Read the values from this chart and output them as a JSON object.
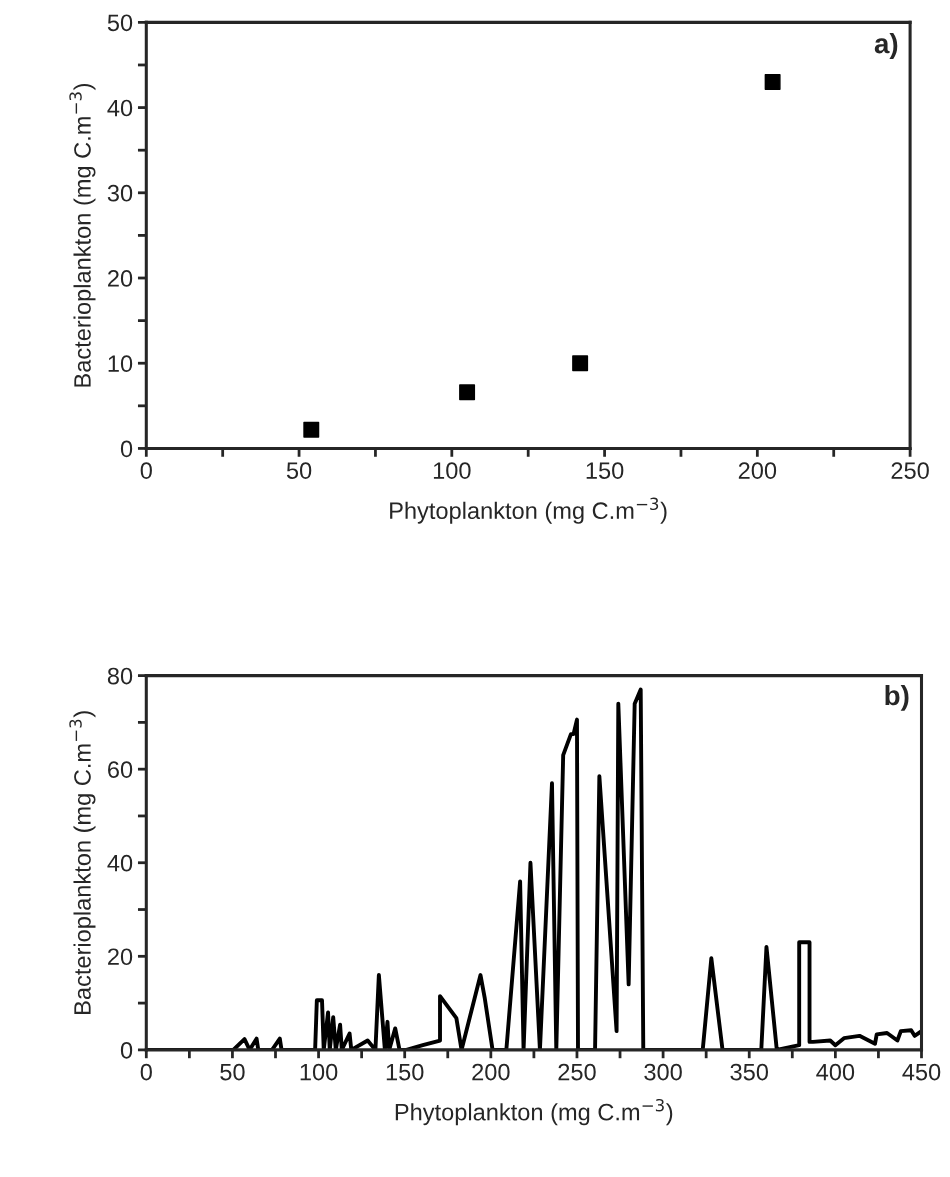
{
  "chart_data": [
    {
      "type": "scatter",
      "xlabel": "Phytoplankton (mg C.m$^{−3}$)",
      "ylabel": "Bacterioplankton (mg C.m$^{−3}$)",
      "annotations": [
        "a)"
      ],
      "marker": "square",
      "grid": false,
      "xlim": [
        0,
        250
      ],
      "ylim": [
        0,
        50
      ],
      "xticks": [
        0,
        {
          "value": 25,
          "label": null
        },
        50,
        {
          "value": 75,
          "label": null
        },
        100,
        {
          "value": 125,
          "label": null
        },
        150,
        {
          "value": 175,
          "label": null
        },
        200,
        {
          "value": 225,
          "label": null
        },
        250
      ],
      "yticks": [
        0,
        {
          "value": 5,
          "label": null
        },
        10,
        {
          "value": 15,
          "label": null
        },
        20,
        {
          "value": 25,
          "label": null
        },
        30,
        {
          "value": 35,
          "label": null
        },
        40,
        {
          "value": 45,
          "label": null
        },
        50
      ],
      "series": [
        {
          "color": "#000000",
          "x": [
            54,
            105,
            142,
            205
          ],
          "values": [
            2.2,
            6.6,
            10,
            43
          ]
        }
      ]
    },
    {
      "type": "line",
      "xlabel": "Phytoplankton (mg C.m$^{−3}$)",
      "ylabel": "Bacterioplankton (mg C.m$^{−3}$)",
      "annotations": [
        "b)"
      ],
      "marker": "none",
      "line_style": "solid",
      "grid": false,
      "xlim": [
        0,
        450
      ],
      "ylim": [
        0,
        80
      ],
      "xticks": [
        0,
        {
          "value": 25,
          "label": null
        },
        50,
        {
          "value": 75,
          "label": null
        },
        100,
        {
          "value": 125,
          "label": null
        },
        150,
        {
          "value": 175,
          "label": null
        },
        200,
        {
          "value": 225,
          "label": null
        },
        250,
        {
          "value": 275,
          "label": null
        },
        300,
        {
          "value": 325,
          "label": null
        },
        350,
        {
          "value": 375,
          "label": null
        },
        400,
        {
          "value": 425,
          "label": null
        },
        450
      ],
      "yticks": [
        0,
        {
          "value": 10,
          "label": null
        },
        20,
        {
          "value": 30,
          "label": null
        },
        40,
        {
          "value": 50,
          "label": null
        },
        60,
        {
          "value": 70,
          "label": null
        },
        80
      ],
      "series": [
        {
          "color": "#000000",
          "x": [
            0,
            50.5,
            57,
            60,
            64,
            65,
            73,
            77.5,
            78.5,
            98,
            99,
            102,
            103,
            105.5,
            106.5,
            108.5,
            110,
            112.5,
            113.5,
            118,
            119,
            128.5,
            133,
            135,
            138.5,
            140,
            141,
            144.5,
            147,
            151,
            160.5,
            170.5,
            170.5,
            180,
            183,
            194,
            196.5,
            201,
            209,
            217,
            219,
            223,
            228.5,
            235.5,
            238,
            242,
            246.5,
            248,
            250,
            250.6,
            256,
            260.5,
            263,
            273,
            274,
            280,
            283.5,
            287,
            288.5,
            323,
            328,
            334.5,
            357,
            360,
            366,
            379,
            379,
            385,
            385,
            387,
            397,
            400,
            405,
            414,
            423,
            424,
            430,
            436,
            438,
            444,
            446,
            450
          ],
          "values": [
            0,
            0,
            2.3,
            0,
            2.4,
            0,
            0,
            2.4,
            0,
            0,
            10.6,
            10.6,
            0,
            8,
            0,
            7,
            0,
            5.4,
            0,
            3.5,
            0,
            2,
            0,
            16,
            0,
            6,
            0,
            4.6,
            0,
            0,
            1,
            2,
            11.5,
            6.8,
            0,
            16,
            11,
            0,
            0,
            36,
            0,
            40,
            0,
            57,
            0,
            63,
            67.5,
            67.5,
            70.6,
            0,
            0,
            0,
            58.5,
            4,
            74,
            14,
            74,
            77,
            0,
            0,
            19.6,
            0,
            0,
            22,
            0,
            1,
            23,
            23,
            1.7,
            1.7,
            2,
            1,
            2.5,
            3,
            1.3,
            3.3,
            3.6,
            2,
            4,
            4.2,
            3,
            4
          ]
        }
      ]
    }
  ]
}
